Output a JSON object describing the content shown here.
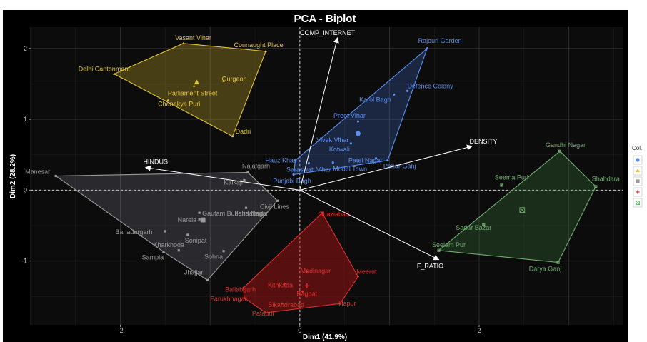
{
  "chart_data": {
    "type": "scatter",
    "title": "PCA - Biplot",
    "xlabel": "Dim1 (41.9%)",
    "ylabel": "Dim2 (28.2%)",
    "xlim": [
      -3.0,
      3.6
    ],
    "ylim": [
      -1.9,
      2.3
    ],
    "x_ticks": [
      -2,
      0,
      2
    ],
    "y_ticks": [
      -1,
      0,
      1,
      2
    ],
    "grid": "on",
    "legend_title": "Col.",
    "colors": {
      "background": "#000000",
      "panel": "#0c0c0c",
      "grid": "#3a3a3a",
      "text": "#ffffff",
      "tick": "#bdbdbd",
      "arrow": "#ffffff"
    },
    "groups": [
      {
        "color": "#5b8ff0",
        "fill": "rgba(70,110,200,0.28)",
        "marker": "circle",
        "center": [
          0.65,
          0.8
        ],
        "hull": [
          "Rajouri Garden",
          "Pahar Ganj",
          "Punjabi Bagh",
          "Hauz Khas"
        ],
        "points": [
          {
            "label": "Rajouri Garden",
            "x": 1.42,
            "y": 2.0
          },
          {
            "label": "Defence Colony",
            "x": 1.2,
            "y": 1.4
          },
          {
            "label": "Karol Bagh",
            "x": 1.05,
            "y": 1.35
          },
          {
            "label": "Preet Vihar",
            "x": 0.65,
            "y": 0.97
          },
          {
            "label": "Vivek Vihar",
            "x": 0.43,
            "y": 0.73
          },
          {
            "label": "Kotwali",
            "x": 0.57,
            "y": 0.66
          },
          {
            "label": "Patel Nagar",
            "x": 0.85,
            "y": 0.45
          },
          {
            "label": "Hauz Khas",
            "x": -0.05,
            "y": 0.42
          },
          {
            "label": "Saraswati Vihar",
            "x": 0.1,
            "y": 0.38
          },
          {
            "label": "Model Town",
            "x": 0.37,
            "y": 0.39
          },
          {
            "label": "Pahar Ganj",
            "x": 0.98,
            "y": 0.42
          },
          {
            "label": "Punjabi Bagh",
            "x": -0.07,
            "y": 0.22
          }
        ]
      },
      {
        "color": "#e0c43c",
        "fill": "rgba(190,165,40,0.33)",
        "marker": "triangle",
        "center": [
          -1.15,
          1.52
        ],
        "hull": [
          "Vasant Vihar",
          "Connaught Place",
          "Dadri",
          "Delhi Cantonment"
        ],
        "points": [
          {
            "label": "Vasant Vihar",
            "x": -1.3,
            "y": 2.07
          },
          {
            "label": "Connaught Place",
            "x": -0.38,
            "y": 1.96
          },
          {
            "label": "Delhi Cantonment",
            "x": -2.07,
            "y": 1.64
          },
          {
            "label": "Gurgaon",
            "x": -0.85,
            "y": 1.54
          },
          {
            "label": "Parliament Street",
            "x": -1.18,
            "y": 1.47
          },
          {
            "label": "Chanakya Puri",
            "x": -1.47,
            "y": 1.27
          },
          {
            "label": "Dadri",
            "x": -0.75,
            "y": 0.76
          }
        ]
      },
      {
        "color": "#9a9a9a",
        "fill": "rgba(150,150,170,0.22)",
        "marker": "square",
        "center": [
          -1.08,
          -0.42
        ],
        "hull": [
          "Manesar",
          "Najafgarh",
          "Civil Lines",
          "Jhajjar",
          "Sampla"
        ],
        "points": [
          {
            "label": "Manesar",
            "x": -2.72,
            "y": 0.2
          },
          {
            "label": "Najafgarh",
            "x": -0.58,
            "y": 0.25
          },
          {
            "label": "Kalkaji",
            "x": -0.62,
            "y": 0.14
          },
          {
            "label": "Faridabad",
            "x": -0.6,
            "y": -0.25
          },
          {
            "label": "Civil Lines",
            "x": -0.25,
            "y": -0.15
          },
          {
            "label": "Gautam Buddha Nagar",
            "x": -1.12,
            "y": -0.32
          },
          {
            "label": "Narela",
            "x": -1.12,
            "y": -0.41
          },
          {
            "label": "Bahadurgarh",
            "x": -1.5,
            "y": -0.58
          },
          {
            "label": "Sonipat",
            "x": -1.25,
            "y": -0.63
          },
          {
            "label": "Kharkhoda",
            "x": -1.35,
            "y": -0.85
          },
          {
            "label": "Sohna",
            "x": -0.85,
            "y": -0.86
          },
          {
            "label": "Sampla",
            "x": -1.52,
            "y": -0.87
          },
          {
            "label": "Jhajjar",
            "x": -1.03,
            "y": -1.27
          }
        ]
      },
      {
        "color": "#e03030",
        "fill": "rgba(180,20,20,0.45)",
        "marker": "cross",
        "center": [
          0.08,
          -1.35
        ],
        "hull": [
          "Ghaziabad",
          "Meerut",
          "Hapur",
          "Pataudi",
          "Farukhnagar",
          "Ballabgarh"
        ],
        "points": [
          {
            "label": "Ghaziabad",
            "x": 0.25,
            "y": -0.32
          },
          {
            "label": "Modinagar",
            "x": 0.08,
            "y": -1.15
          },
          {
            "label": "Meerut",
            "x": 0.65,
            "y": -1.22
          },
          {
            "label": "Kithkada",
            "x": -0.17,
            "y": -1.32
          },
          {
            "label": "Ballabgarh",
            "x": -0.63,
            "y": -1.38
          },
          {
            "label": "Bagpat",
            "x": 0.03,
            "y": -1.43
          },
          {
            "label": "Farukhnagar",
            "x": -0.62,
            "y": -1.52
          },
          {
            "label": "Sikandrabad",
            "x": -0.2,
            "y": -1.6
          },
          {
            "label": "Hapur",
            "x": 0.45,
            "y": -1.6
          },
          {
            "label": "Pataudi",
            "x": -0.38,
            "y": -1.73
          }
        ]
      },
      {
        "color": "#6fae6f",
        "fill": "rgba(60,120,60,0.3)",
        "marker": "boxed-x",
        "center": [
          2.48,
          -0.28
        ],
        "hull": [
          "Gandhi Nagar",
          "Shahdara",
          "Darya Ganj",
          "Seelam Pur"
        ],
        "points": [
          {
            "label": "Gandhi Nagar",
            "x": 2.9,
            "y": 0.55
          },
          {
            "label": "Seema Puri",
            "x": 2.25,
            "y": 0.07
          },
          {
            "label": "Shahdara",
            "x": 3.3,
            "y": 0.05
          },
          {
            "label": "Sadar Bazar",
            "x": 2.05,
            "y": -0.48
          },
          {
            "label": "Seelam Pur",
            "x": 1.55,
            "y": -0.85
          },
          {
            "label": "Darya Ganj",
            "x": 2.88,
            "y": -1.02
          }
        ]
      }
    ],
    "variables": [
      {
        "label": "COMP_INTERNET",
        "x": 0.42,
        "y": 2.15
      },
      {
        "label": "DENSITY",
        "x": 1.92,
        "y": 0.62
      },
      {
        "label": "HINDUS",
        "x": -1.72,
        "y": 0.32
      },
      {
        "label": "F_RATIO",
        "x": 1.55,
        "y": -0.98
      }
    ],
    "arrow_origin": [
      0.0,
      0.0
    ]
  }
}
